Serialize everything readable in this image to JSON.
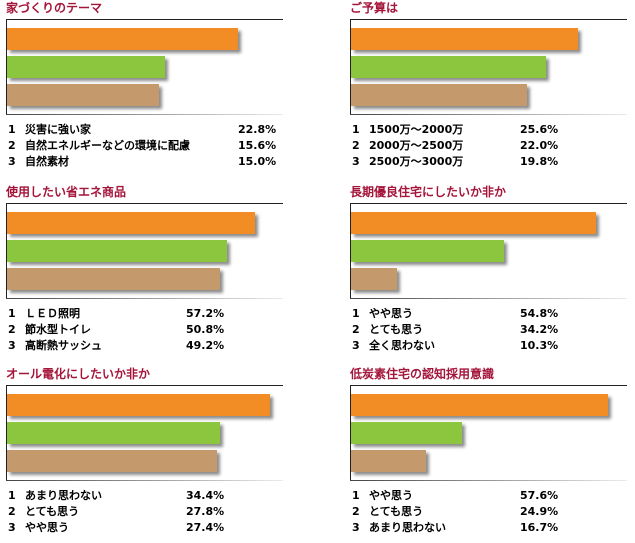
{
  "colors": {
    "rank1": "#f28c24",
    "rank2": "#8cc63f",
    "rank3": "#c49a6c",
    "title": "#a4153a"
  },
  "chart_data": [
    {
      "type": "bar",
      "title": "家づくりのテーマ",
      "categories": [
        "災害に強い家",
        "自然エネルギーなどの環境に配慮",
        "自然素材"
      ],
      "values": [
        22.8,
        15.6,
        15.0
      ],
      "ranks": [
        "1",
        "2",
        "3"
      ],
      "labels": [
        "22.8%",
        "15.6%",
        "15.0%"
      ],
      "max": 26.4
    },
    {
      "type": "bar",
      "title": "ご予算は",
      "categories": [
        "1500万～2000万",
        "2000万～2500万",
        "2500万～3000万"
      ],
      "values": [
        25.6,
        22.0,
        19.8
      ],
      "ranks": [
        "1",
        "2",
        "3"
      ],
      "labels": [
        "25.6%",
        "22.0%",
        "19.8%"
      ],
      "max": 30.2
    },
    {
      "type": "bar",
      "title": "使用したい省エネ商品",
      "categories": [
        "ＬＥＤ照明",
        "節水型トイレ",
        "高断熱サッシュ"
      ],
      "values": [
        57.2,
        50.8,
        49.2
      ],
      "ranks": [
        "1",
        "2",
        "3"
      ],
      "labels": [
        "57.2%",
        "50.8%",
        "49.2%"
      ],
      "max": 61.9
    },
    {
      "type": "bar",
      "title": "長期優良住宅にしたいか非か",
      "categories": [
        "やや思う",
        "とても思う",
        "全く思わない"
      ],
      "values": [
        54.8,
        34.2,
        10.3
      ],
      "ranks": [
        "1",
        "2",
        "3"
      ],
      "labels": [
        "54.8%",
        "34.2%",
        "10.3%"
      ],
      "max": 60.0
    },
    {
      "type": "bar",
      "title": "オール電化にしたいか非か",
      "categories": [
        "あまり思わない",
        "とても思う",
        "やや思う"
      ],
      "values": [
        34.4,
        27.8,
        27.4
      ],
      "ranks": [
        "1",
        "2",
        "3"
      ],
      "labels": [
        "34.4%",
        "27.8%",
        "27.4%"
      ],
      "max": 35.0
    },
    {
      "type": "bar",
      "title": "低炭素住宅の認知採用意識",
      "categories": [
        "やや思う",
        "とても思う",
        "あまり思わない"
      ],
      "values": [
        57.6,
        24.9,
        16.7
      ],
      "ranks": [
        "1",
        "2",
        "3"
      ],
      "labels": [
        "57.6%",
        "24.9%",
        "16.7%"
      ],
      "max": 60.0
    }
  ]
}
